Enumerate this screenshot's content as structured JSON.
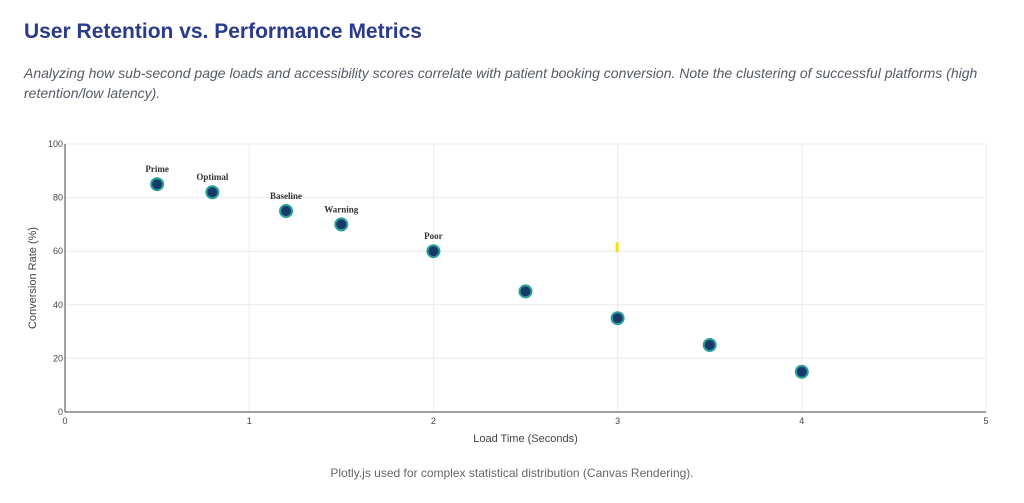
{
  "header": {
    "title": "User Retention vs. Performance Metrics",
    "subtitle": "Analyzing how sub-second page loads and accessibility scores correlate with patient booking conversion. Note the clustering of successful platforms (high retention/low latency)."
  },
  "footer": {
    "note": "Plotly.js used for complex statistical distribution (Canvas Rendering)."
  },
  "chart_data": {
    "type": "scatter",
    "xlabel": "Load Time (Seconds)",
    "ylabel": "Conversion Rate (%)",
    "xlim": [
      0,
      5
    ],
    "ylim": [
      0,
      100
    ],
    "xticks": [
      0,
      1,
      2,
      3,
      4,
      5
    ],
    "yticks": [
      0,
      20,
      40,
      60,
      80,
      100
    ],
    "grid": true,
    "points": [
      {
        "x": 0.5,
        "y": 85,
        "label": "Prime"
      },
      {
        "x": 0.8,
        "y": 82,
        "label": "Optimal"
      },
      {
        "x": 1.2,
        "y": 75,
        "label": "Baseline"
      },
      {
        "x": 1.5,
        "y": 70,
        "label": "Warning"
      },
      {
        "x": 2.0,
        "y": 60,
        "label": "Poor"
      },
      {
        "x": 2.5,
        "y": 45,
        "label": ""
      },
      {
        "x": 3.0,
        "y": 35,
        "label": ""
      },
      {
        "x": 3.5,
        "y": 25,
        "label": ""
      },
      {
        "x": 4.0,
        "y": 15,
        "label": ""
      }
    ],
    "highlight_mark": {
      "x": 3.0,
      "y": 61.5
    },
    "colors": {
      "marker_fill": "#173a6b",
      "marker_stroke": "#2aa198",
      "highlight": "#f2e205",
      "grid": "#ebebeb",
      "axis": "#444444"
    }
  }
}
